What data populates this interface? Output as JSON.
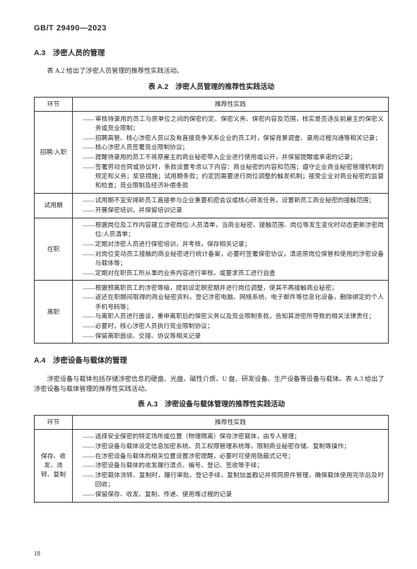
{
  "standard_id": "GB/T 29490—2023",
  "section_a3": {
    "heading": "A.3　涉密人员的管理",
    "intro": "表 A.2 给出了涉密人员管理的推荐性实践活动。",
    "table_caption": "表 A.2　涉密人员管理的推荐性实践活动",
    "col1": "环节",
    "col2": "推荐性实践",
    "rows": [
      {
        "phase": "招聘/入职",
        "items": [
          "审核待录用的员工与原单位之间的保密约定、保密义务、保密内容及范围，核实是否违反前雇主的保密义务或竞业限制；",
          "招聘高管、核心涉密人员以及有直接竞争关系企业的员工时，保留背景调查、录用过程沟通等相关记录；",
          "核心涉密人员签署竞业限制协议；",
          "提醒待录用的员工不将原雇主的商业秘密带入企业进行使用或公开，并保留提醒或承诺的记录；",
          "签署劳动合同或协议时，条款设置考虑以下内容：商业秘密的内容和范围；遵守企业商业秘密管理机制的规定和义务；奖惩措施；试用期条款；约定因需要进行岗位调整的触发机制；接受企业对商业秘密的监督和检查；竞业限制及经济补偿条款"
        ]
      },
      {
        "phase": "试用期",
        "items": [
          "试用期不宜安排新员工直接参与企业重要机密会议或核心研发任务，设置新员工商业秘密的接触范围；",
          "开展保密培训，并保留培训记录"
        ]
      },
      {
        "phase": "在职",
        "items": [
          "根据岗位及工作内容建立涉密岗位/人员清单，当商业秘密、接触范围、岗位等发生变化时动态更新涉密岗位/人员清单；",
          "定期对涉密人员进行保密培训，并考核，保存相关记录；",
          "对岗位变动员工接触的商业秘密进行统计备案，必要时签署保密协议，清退原岗位保管和使用的涉密设备与载体等；",
          "定期对在职员工所从事的业务内容进行审核，或要求员工进行自查"
        ]
      },
      {
        "phase": "离职",
        "items": [
          "根据预离职员工的涉密等级，提前设定脱密期并进行岗位调整，使其不再接触商业秘密；",
          "返还在职期间取得的商业秘密资料，登记涉密电脑、网络系统、电子邮件等信息化设备，删除绑定的个人手机号码等；",
          "与离职人员进行面谈，重申离职后的保密义务以及竞业限制条款，告知其泄密所导致的相关法律责任；",
          "必要时，核心涉密人员执行竞业限制协议；",
          "保留离职面谈、交接、协议等相关记录"
        ]
      }
    ]
  },
  "section_a4": {
    "heading": "A.4　涉密设备与载体的管理",
    "intro": "涉密设备与载体包括存储涉密信息的硬盘、光盘、磁性介质、U 盘、研发设备、生产设备等设备与载体。表 A.3 给出了涉密设备与载体管理的推荐性实践活动。",
    "table_caption": "表 A.3　涉密设备与载体管理的推荐性实践活动",
    "col1": "环节",
    "col2": "推荐性实践",
    "rows": [
      {
        "phase": "保存、收发、流转、复制",
        "items": [
          "选择安全保密的特定场所或位置（物理隔离）保存涉密载体，由专人管理；",
          "涉密设备与载体设定信息加密系统、员工权限管理系统等，限制商业秘密存储、复制等操作；",
          "在涉密设备与载体的相关位置设置涉密提醒，必要时可使用隐蔽式记号；",
          "涉密设备与载体的收发履行清点、编号、登记、签收等手续；",
          "涉密载体流转、复制时，履行审批、登记手续，复制加盖戳记并视同原件管理，确保载体使用完毕后及时回收；",
          "保留保存、收发、复制、传递、使用等过程的记录"
        ]
      }
    ]
  },
  "page_number": "18"
}
